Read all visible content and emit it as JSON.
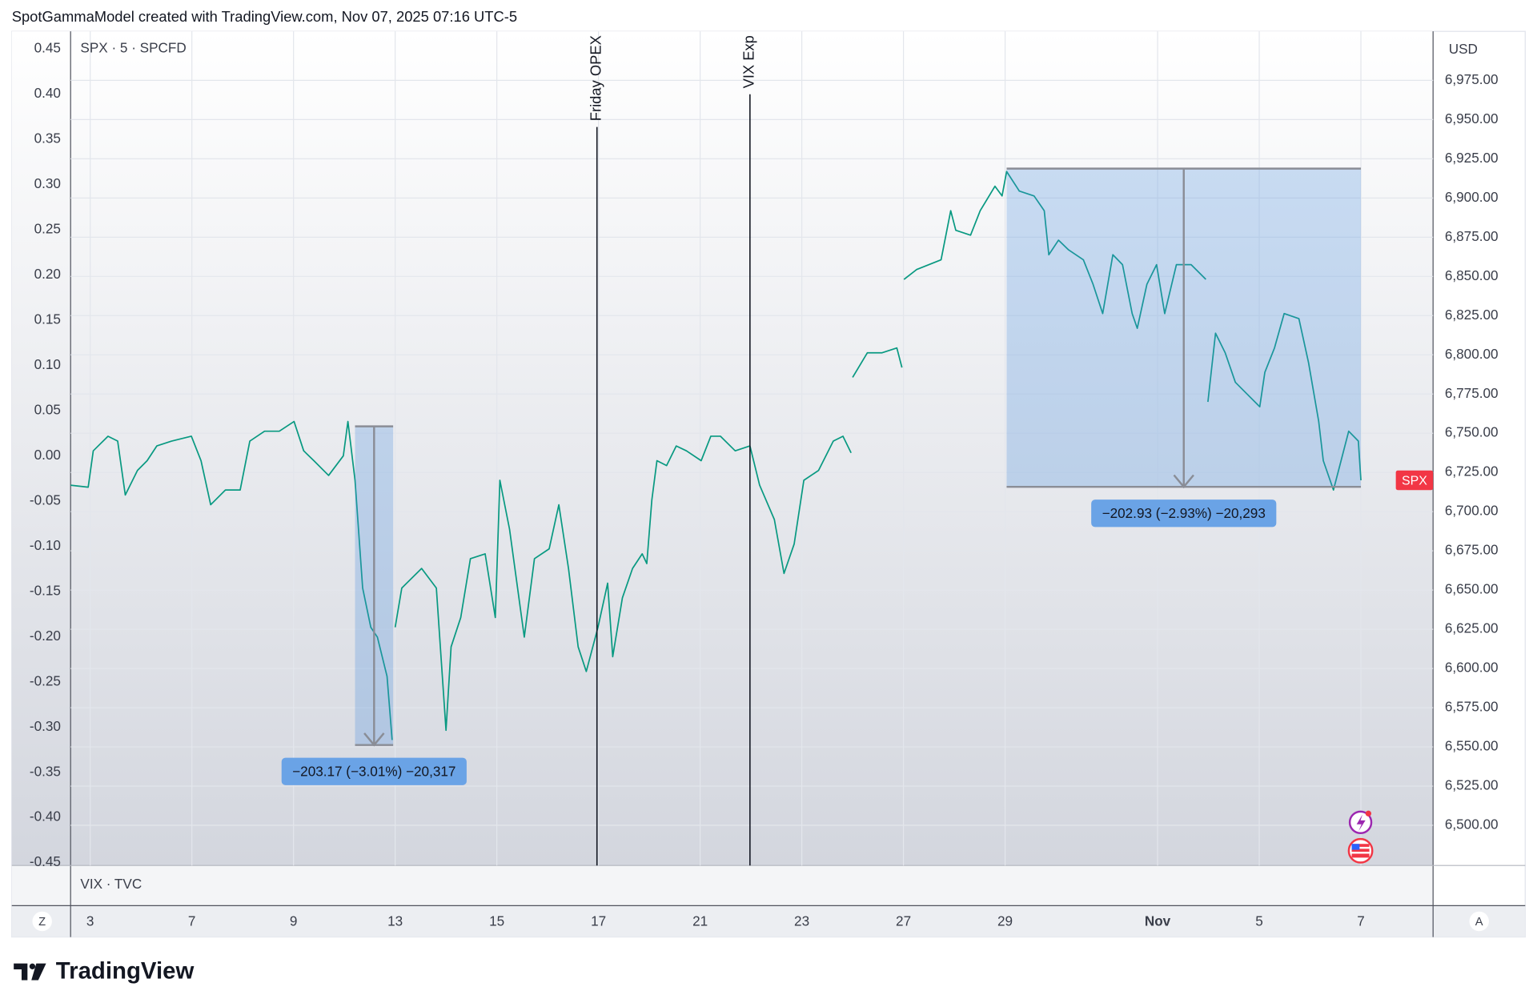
{
  "chart_data": {
    "type": "line",
    "header": "SpotGammaModel created with TradingView.com, Nov 07, 2025 07:16 UTC-5",
    "symbol_label": "SPX · 5 · SPCFD",
    "lower_pane_label": "VIX · TVC",
    "currency": "USD",
    "buttons": [
      "Z",
      "A"
    ],
    "brand": "TradingView",
    "grid": true,
    "xlim": [
      -0.386,
      26.42
    ],
    "xticks": [
      {
        "value": 0,
        "label": "3"
      },
      {
        "value": 2,
        "label": "7"
      },
      {
        "value": 4,
        "label": "9"
      },
      {
        "value": 6,
        "label": "13"
      },
      {
        "value": 8,
        "label": "15"
      },
      {
        "value": 10,
        "label": "17"
      },
      {
        "value": 12,
        "label": "21"
      },
      {
        "value": 14,
        "label": "23"
      },
      {
        "value": 16,
        "label": "27"
      },
      {
        "value": 18,
        "label": "29"
      },
      {
        "value": 21,
        "label": "Nov"
      },
      {
        "value": 23,
        "label": "5"
      },
      {
        "value": 25,
        "label": "7"
      }
    ],
    "ylim": [
      -0.4531,
      0.4695
    ],
    "yticks": [
      0.45,
      {
        "value": 0.4,
        "label": "0.40"
      },
      0.35,
      {
        "value": 0.3,
        "label": "0.30"
      },
      0.25,
      {
        "value": 0.2,
        "label": "0.20"
      },
      0.15,
      {
        "value": 0.1,
        "label": "0.10"
      },
      0.05,
      {
        "value": 0,
        "label": "0.00"
      },
      -0.05,
      {
        "value": -0.1,
        "label": "-0.10"
      },
      -0.15,
      {
        "value": -0.2,
        "label": "-0.20"
      },
      -0.25,
      {
        "value": -0.3,
        "label": "-0.30"
      },
      -0.35,
      {
        "value": -0.4,
        "label": "-0.40"
      },
      -0.45
    ],
    "y2lim": [
      6474.4,
      7006.25
    ],
    "y2ticks": [
      {
        "value": 6500,
        "label": "6,500.00"
      },
      {
        "value": 6525,
        "label": "6,525.00"
      },
      {
        "value": 6550,
        "label": "6,550.00"
      },
      {
        "value": 6575,
        "label": "6,575.00"
      },
      {
        "value": 6600,
        "label": "6,600.00"
      },
      {
        "value": 6625,
        "label": "6,625.00"
      },
      {
        "value": 6650,
        "label": "6,650.00"
      },
      {
        "value": 6675,
        "label": "6,675.00"
      },
      {
        "value": 6700,
        "label": "6,700.00"
      },
      {
        "value": 6725,
        "label": "6,725.00"
      },
      {
        "value": 6750,
        "label": "6,750.00"
      },
      {
        "value": 6775,
        "label": "6,775.00"
      },
      {
        "value": 6800,
        "label": "6,800.00"
      },
      {
        "value": 6825,
        "label": "6,825.00"
      },
      {
        "value": 6850,
        "label": "6,850.00"
      },
      {
        "value": 6875,
        "label": "6,875.00"
      },
      {
        "value": 6900,
        "label": "6,900.00"
      },
      {
        "value": 6925,
        "label": "6,925.00"
      },
      {
        "value": 6950,
        "label": "6,950.00"
      },
      {
        "value": 6975,
        "label": "6,975.00"
      }
    ],
    "x": [
      -0.39,
      -0.04,
      0.06,
      0.35,
      0.54,
      0.69,
      0.93,
      1.12,
      1.31,
      1.6,
      1.99,
      2.18,
      2.37,
      2.66,
      2.95,
      3.14,
      3.43,
      3.72,
      4.01,
      4.2,
      4.4,
      4.69,
      4.98,
      5.07,
      5.21,
      5.36,
      5.52,
      5.65,
      5.84,
      5.94,
      null,
      6,
      6.13,
      6.52,
      6.81,
      7,
      7.1,
      7.29,
      7.48,
      7.77,
      7.97,
      8.06,
      8.25,
      8.54,
      8.74,
      9.03,
      9.22,
      9.41,
      9.6,
      9.76,
      9.99,
      10.18,
      10.28,
      10.47,
      10.67,
      10.86,
      10.95,
      11.05,
      11.15,
      11.34,
      11.53,
      11.73,
      12.02,
      12.21,
      12.4,
      12.69,
      12.98,
      13.17,
      13.46,
      13.65,
      13.85,
      14.04,
      14.33,
      14.62,
      14.81,
      14.97,
      null,
      15,
      15.29,
      15.58,
      15.87,
      15.97,
      null,
      16.01,
      16.26,
      16.74,
      16.93,
      17.03,
      17.32,
      17.51,
      17.8,
      17.94,
      18.03,
      18.28,
      18.57,
      18.77,
      18.86,
      19.05,
      19.25,
      19.54,
      19.73,
      19.92,
      20.12,
      20.31,
      20.5,
      20.6,
      20.79,
      20.98,
      21.14,
      21.37,
      21.66,
      21.95,
      null,
      21.99,
      22.14,
      22.33,
      22.53,
      22.72,
      23.01,
      23.11,
      23.3,
      23.49,
      23.78,
      23.97,
      24.17,
      24.26,
      24.46,
      24.61,
      24.76,
      24.95,
      25
    ],
    "series": [
      {
        "name": "SPX",
        "color": "#089981",
        "axis": "y2",
        "values": [
          6716.9,
          6715.6,
          6738.8,
          6748.1,
          6745,
          6710.6,
          6726.3,
          6732.5,
          6741.9,
          6745,
          6748.1,
          6732.5,
          6704.4,
          6713.8,
          6713.8,
          6745,
          6751.3,
          6751.3,
          6757.5,
          6738.8,
          6732.5,
          6723.1,
          6735.6,
          6757.5,
          6720,
          6651.3,
          6626.3,
          6620,
          6595,
          6554.4,
          null,
          6626.3,
          6651.3,
          6663.8,
          6651.3,
          6560.6,
          6613.8,
          6632.5,
          6670,
          6673.1,
          6632.5,
          6720,
          6688.8,
          6620,
          6670,
          6676.3,
          6704.4,
          6663.8,
          6613.8,
          6598.1,
          6626.3,
          6654.4,
          6607.5,
          6645,
          6663.8,
          6673.1,
          6666.9,
          6707.5,
          6732.5,
          6729.4,
          6741.9,
          6738.8,
          6732.5,
          6748.1,
          6748.1,
          6738.8,
          6741.9,
          6716.9,
          6695,
          6660.6,
          6679.4,
          6720,
          6726.3,
          6745,
          6748.1,
          6737.5,
          null,
          6785.6,
          6801.3,
          6801.3,
          6804.4,
          6791.9,
          null,
          6848.1,
          6854.4,
          6860.6,
          6891.9,
          6879.4,
          6876.3,
          6891.9,
          6907.5,
          6901.3,
          6916.9,
          6904.4,
          6901.3,
          6891.9,
          6863.8,
          6873.1,
          6866.9,
          6860.6,
          6845,
          6826.3,
          6863.8,
          6857.5,
          6826.3,
          6816.9,
          6845,
          6857.5,
          6826.3,
          6857.5,
          6857.5,
          6848.1,
          null,
          6770,
          6813.8,
          6801.3,
          6782.5,
          6776.3,
          6766.9,
          6788.8,
          6804.4,
          6826.3,
          6823.1,
          6795,
          6757.5,
          6732.5,
          6713.8,
          6732.5,
          6751.3,
          6745,
          6720
        ]
      }
    ],
    "price_tag_color": "#f23645",
    "vlines": [
      {
        "label": "Friday OPEX",
        "x": 9.97
      },
      {
        "label": "VIX Exp",
        "x": 12.98
      }
    ],
    "measure_color": "#4a8fe0",
    "measures": [
      {
        "label": "−203.17 (−3.01%) −20,317",
        "x": [
          5.21,
          5.96
        ],
        "from": 6754.4,
        "to": 6551.23
      },
      {
        "label": "−202.93 (−2.93%) −20,293",
        "x": [
          18.03,
          25.0
        ],
        "from": 6918.75,
        "to": 6715.82
      }
    ]
  }
}
